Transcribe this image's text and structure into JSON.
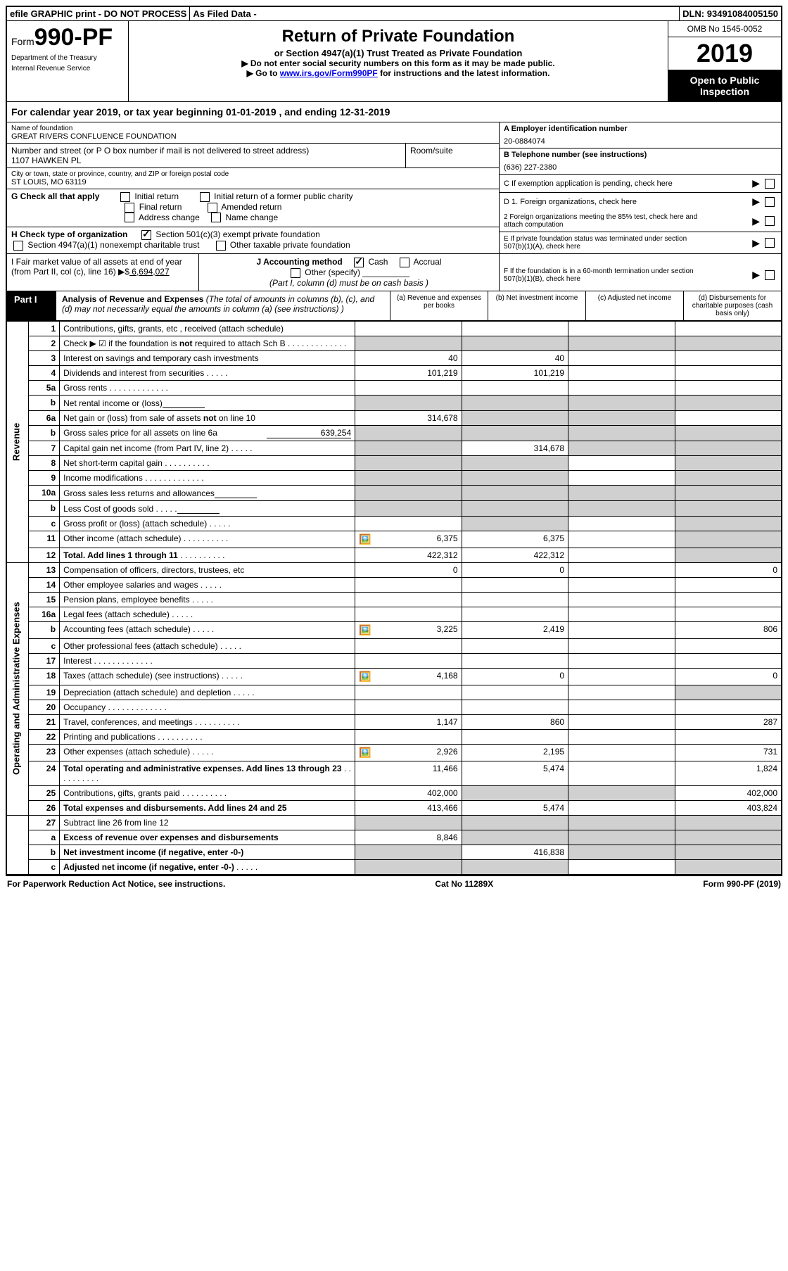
{
  "topbar": {
    "efile": "efile GRAPHIC print - DO NOT PROCESS",
    "asfiled": "As Filed Data -",
    "dln_label": "DLN:",
    "dln": "93491084005150"
  },
  "header": {
    "form_prefix": "Form",
    "form_num": "990-PF",
    "dept": "Department of the Treasury",
    "irs": "Internal Revenue Service",
    "title": "Return of Private Foundation",
    "subtitle": "or Section 4947(a)(1) Trust Treated as Private Foundation",
    "note1": "▶ Do not enter social security numbers on this form as it may be made public.",
    "note2_pre": "▶ Go to ",
    "note2_link": "www.irs.gov/Form990PF",
    "note2_post": " for instructions and the latest information.",
    "omb": "OMB No 1545-0052",
    "year": "2019",
    "open": "Open to Public Inspection"
  },
  "calyear": "For calendar year 2019, or tax year beginning 01-01-2019                    , and ending 12-31-2019",
  "name": {
    "label": "Name of foundation",
    "val": "GREAT RIVERS CONFLUENCE FOUNDATION"
  },
  "addr": {
    "label": "Number and street (or P O  box number if mail is not delivered to street address)",
    "room_label": "Room/suite",
    "val": "1107 HAWKEN PL"
  },
  "city": {
    "label": "City or town, state or province, country, and ZIP or foreign postal code",
    "val": "ST LOUIS, MO  63119"
  },
  "boxA": {
    "label": "A Employer identification number",
    "val": "20-0884074"
  },
  "boxB": {
    "label": "B Telephone number (see instructions)",
    "val": "(636) 227-2380"
  },
  "boxC": {
    "label": "C  If exemption application is pending, check here"
  },
  "boxD1": {
    "label": "D 1. Foreign organizations, check here"
  },
  "boxD2": {
    "label": "2 Foreign organizations meeting the 85% test, check here and attach computation"
  },
  "boxE": {
    "label": "E  If private foundation status was terminated under section 507(b)(1)(A), check here"
  },
  "boxF": {
    "label": "F  If the foundation is in a 60-month termination under section 507(b)(1)(B), check here"
  },
  "sectionG": {
    "label": "G Check all that apply",
    "opts": [
      "Initial return",
      "Initial return of a former public charity",
      "Final return",
      "Amended return",
      "Address change",
      "Name change"
    ]
  },
  "sectionH": {
    "label": "H Check type of organization",
    "opt1": "Section 501(c)(3) exempt private foundation",
    "opt2": "Section 4947(a)(1) nonexempt charitable trust",
    "opt3": "Other taxable private foundation"
  },
  "sectionI": {
    "label": "I Fair market value of all assets at end of year (from Part II, col  (c), line 16) ▶$",
    "val": " 6,694,027"
  },
  "sectionJ": {
    "label": "J Accounting method",
    "cash": "Cash",
    "accrual": "Accrual",
    "other": "Other (specify)",
    "note": "(Part I, column (d) must be on cash basis )"
  },
  "part1": {
    "label": "Part I",
    "title": "Analysis of Revenue and Expenses",
    "title_note": " (The total of amounts in columns (b), (c), and (d) may not necessarily equal the amounts in column (a) (see instructions) )",
    "cols": {
      "a": "(a) Revenue and expenses per books",
      "b": "(b) Net investment income",
      "c": "(c) Adjusted net income",
      "d": "(d) Disbursements for charitable purposes (cash basis only)"
    }
  },
  "sides": {
    "rev": "Revenue",
    "exp": "Operating and Administrative Expenses"
  },
  "rows": [
    {
      "n": "1",
      "d": "Contributions, gifts, grants, etc , received (attach schedule)",
      "a": "",
      "b": "",
      "c": "",
      "e": ""
    },
    {
      "n": "2",
      "d": "Check ▶ ☑ if the foundation is not required to attach Sch  B",
      "dots": "long",
      "a": "",
      "b": "",
      "c": "",
      "e": "",
      "grayA": true,
      "grayB": true,
      "grayC": true,
      "grayE": true
    },
    {
      "n": "3",
      "d": "Interest on savings and temporary cash investments",
      "a": "40",
      "b": "40",
      "c": "",
      "e": ""
    },
    {
      "n": "4",
      "d": "Dividends and interest from securities",
      "dots": "short",
      "a": "101,219",
      "b": "101,219",
      "c": "",
      "e": ""
    },
    {
      "n": "5a",
      "d": "Gross rents",
      "dots": "long",
      "a": "",
      "b": "",
      "c": "",
      "e": ""
    },
    {
      "n": "b",
      "d": "Net rental income or (loss)",
      "sub": true,
      "grayA": true,
      "grayB": true,
      "grayC": true,
      "grayE": true
    },
    {
      "n": "6a",
      "d": "Net gain or (loss) from sale of assets not on line 10",
      "a": "314,678",
      "grayB": true,
      "grayC": true,
      "e": ""
    },
    {
      "n": "b",
      "d": "Gross sales price for all assets on line 6a",
      "sub": true,
      "subval": "639,254",
      "grayA": true,
      "grayB": true,
      "grayC": true,
      "grayE": true
    },
    {
      "n": "7",
      "d": "Capital gain net income (from Part IV, line 2)",
      "dots": "short",
      "grayA": true,
      "b": "314,678",
      "grayC": true,
      "grayE": true
    },
    {
      "n": "8",
      "d": "Net short-term capital gain",
      "dots": "med",
      "grayA": true,
      "grayB": true,
      "c": "",
      "grayE": true
    },
    {
      "n": "9",
      "d": "Income modifications",
      "dots": "long",
      "grayA": true,
      "grayB": true,
      "c": "",
      "grayE": true
    },
    {
      "n": "10a",
      "d": "Gross sales less returns and allowances",
      "sub": true,
      "grayA": true,
      "grayB": true,
      "grayC": true,
      "grayE": true
    },
    {
      "n": "b",
      "d": "Less  Cost of goods sold",
      "dots": "short",
      "sub": true,
      "grayA": true,
      "grayB": true,
      "grayC": true,
      "grayE": true
    },
    {
      "n": "c",
      "d": "Gross profit or (loss) (attach schedule)",
      "dots": "short",
      "a": "",
      "grayB": true,
      "c": "",
      "grayE": true
    },
    {
      "n": "11",
      "d": "Other income (attach schedule)",
      "dots": "med",
      "icon": true,
      "a": "6,375",
      "b": "6,375",
      "c": "",
      "grayE": true
    },
    {
      "n": "12",
      "d": "Total. Add lines 1 through 11",
      "dots": "med",
      "bold": true,
      "a": "422,312",
      "b": "422,312",
      "c": "",
      "grayE": true
    },
    {
      "n": "13",
      "d": "Compensation of officers, directors, trustees, etc",
      "a": "0",
      "b": "0",
      "c": "",
      "e": "0"
    },
    {
      "n": "14",
      "d": "Other employee salaries and wages",
      "dots": "short",
      "a": "",
      "b": "",
      "c": "",
      "e": ""
    },
    {
      "n": "15",
      "d": "Pension plans, employee benefits",
      "dots": "short",
      "a": "",
      "b": "",
      "c": "",
      "e": ""
    },
    {
      "n": "16a",
      "d": "Legal fees (attach schedule)",
      "dots": "short",
      "a": "",
      "b": "",
      "c": "",
      "e": ""
    },
    {
      "n": "b",
      "d": "Accounting fees (attach schedule)",
      "dots": "short",
      "icon": true,
      "a": "3,225",
      "b": "2,419",
      "c": "",
      "e": "806"
    },
    {
      "n": "c",
      "d": "Other professional fees (attach schedule)",
      "dots": "short",
      "a": "",
      "b": "",
      "c": "",
      "e": ""
    },
    {
      "n": "17",
      "d": "Interest",
      "dots": "long",
      "a": "",
      "b": "",
      "c": "",
      "e": ""
    },
    {
      "n": "18",
      "d": "Taxes (attach schedule) (see instructions)",
      "dots": "short",
      "icon": true,
      "a": "4,168",
      "b": "0",
      "c": "",
      "e": "0"
    },
    {
      "n": "19",
      "d": "Depreciation (attach schedule) and depletion",
      "dots": "short",
      "a": "",
      "b": "",
      "c": "",
      "grayE": true
    },
    {
      "n": "20",
      "d": "Occupancy",
      "dots": "long",
      "a": "",
      "b": "",
      "c": "",
      "e": ""
    },
    {
      "n": "21",
      "d": "Travel, conferences, and meetings",
      "dots": "med",
      "a": "1,147",
      "b": "860",
      "c": "",
      "e": "287"
    },
    {
      "n": "22",
      "d": "Printing and publications",
      "dots": "med",
      "a": "",
      "b": "",
      "c": "",
      "e": ""
    },
    {
      "n": "23",
      "d": "Other expenses (attach schedule)",
      "dots": "short",
      "icon": true,
      "a": "2,926",
      "b": "2,195",
      "c": "",
      "e": "731"
    },
    {
      "n": "24",
      "d": "Total operating and administrative expenses. Add lines 13 through 23",
      "dots": "med",
      "bold": true,
      "a": "11,466",
      "b": "5,474",
      "c": "",
      "e": "1,824"
    },
    {
      "n": "25",
      "d": "Contributions, gifts, grants paid",
      "dots": "med",
      "a": "402,000",
      "grayB": true,
      "grayC": true,
      "e": "402,000"
    },
    {
      "n": "26",
      "d": "Total expenses and disbursements. Add lines 24 and 25",
      "bold": true,
      "a": "413,466",
      "b": "5,474",
      "c": "",
      "e": "403,824"
    },
    {
      "n": "27",
      "d": "Subtract line 26 from line 12",
      "grayA": true,
      "grayB": true,
      "grayC": true,
      "grayE": true
    },
    {
      "n": "a",
      "d": "Excess of revenue over expenses and disbursements",
      "bold": true,
      "a": "8,846",
      "grayB": true,
      "grayC": true,
      "grayE": true
    },
    {
      "n": "b",
      "d": "Net investment income (if negative, enter -0-)",
      "bold": true,
      "grayA": true,
      "b": "416,838",
      "grayC": true,
      "grayE": true
    },
    {
      "n": "c",
      "d": "Adjusted net income (if negative, enter -0-)",
      "dots": "short",
      "bold": true,
      "grayA": true,
      "grayB": true,
      "c": "",
      "grayE": true
    }
  ],
  "footer": {
    "left": "For Paperwork Reduction Act Notice, see instructions.",
    "mid": "Cat  No  11289X",
    "right": "Form 990-PF (2019)"
  }
}
